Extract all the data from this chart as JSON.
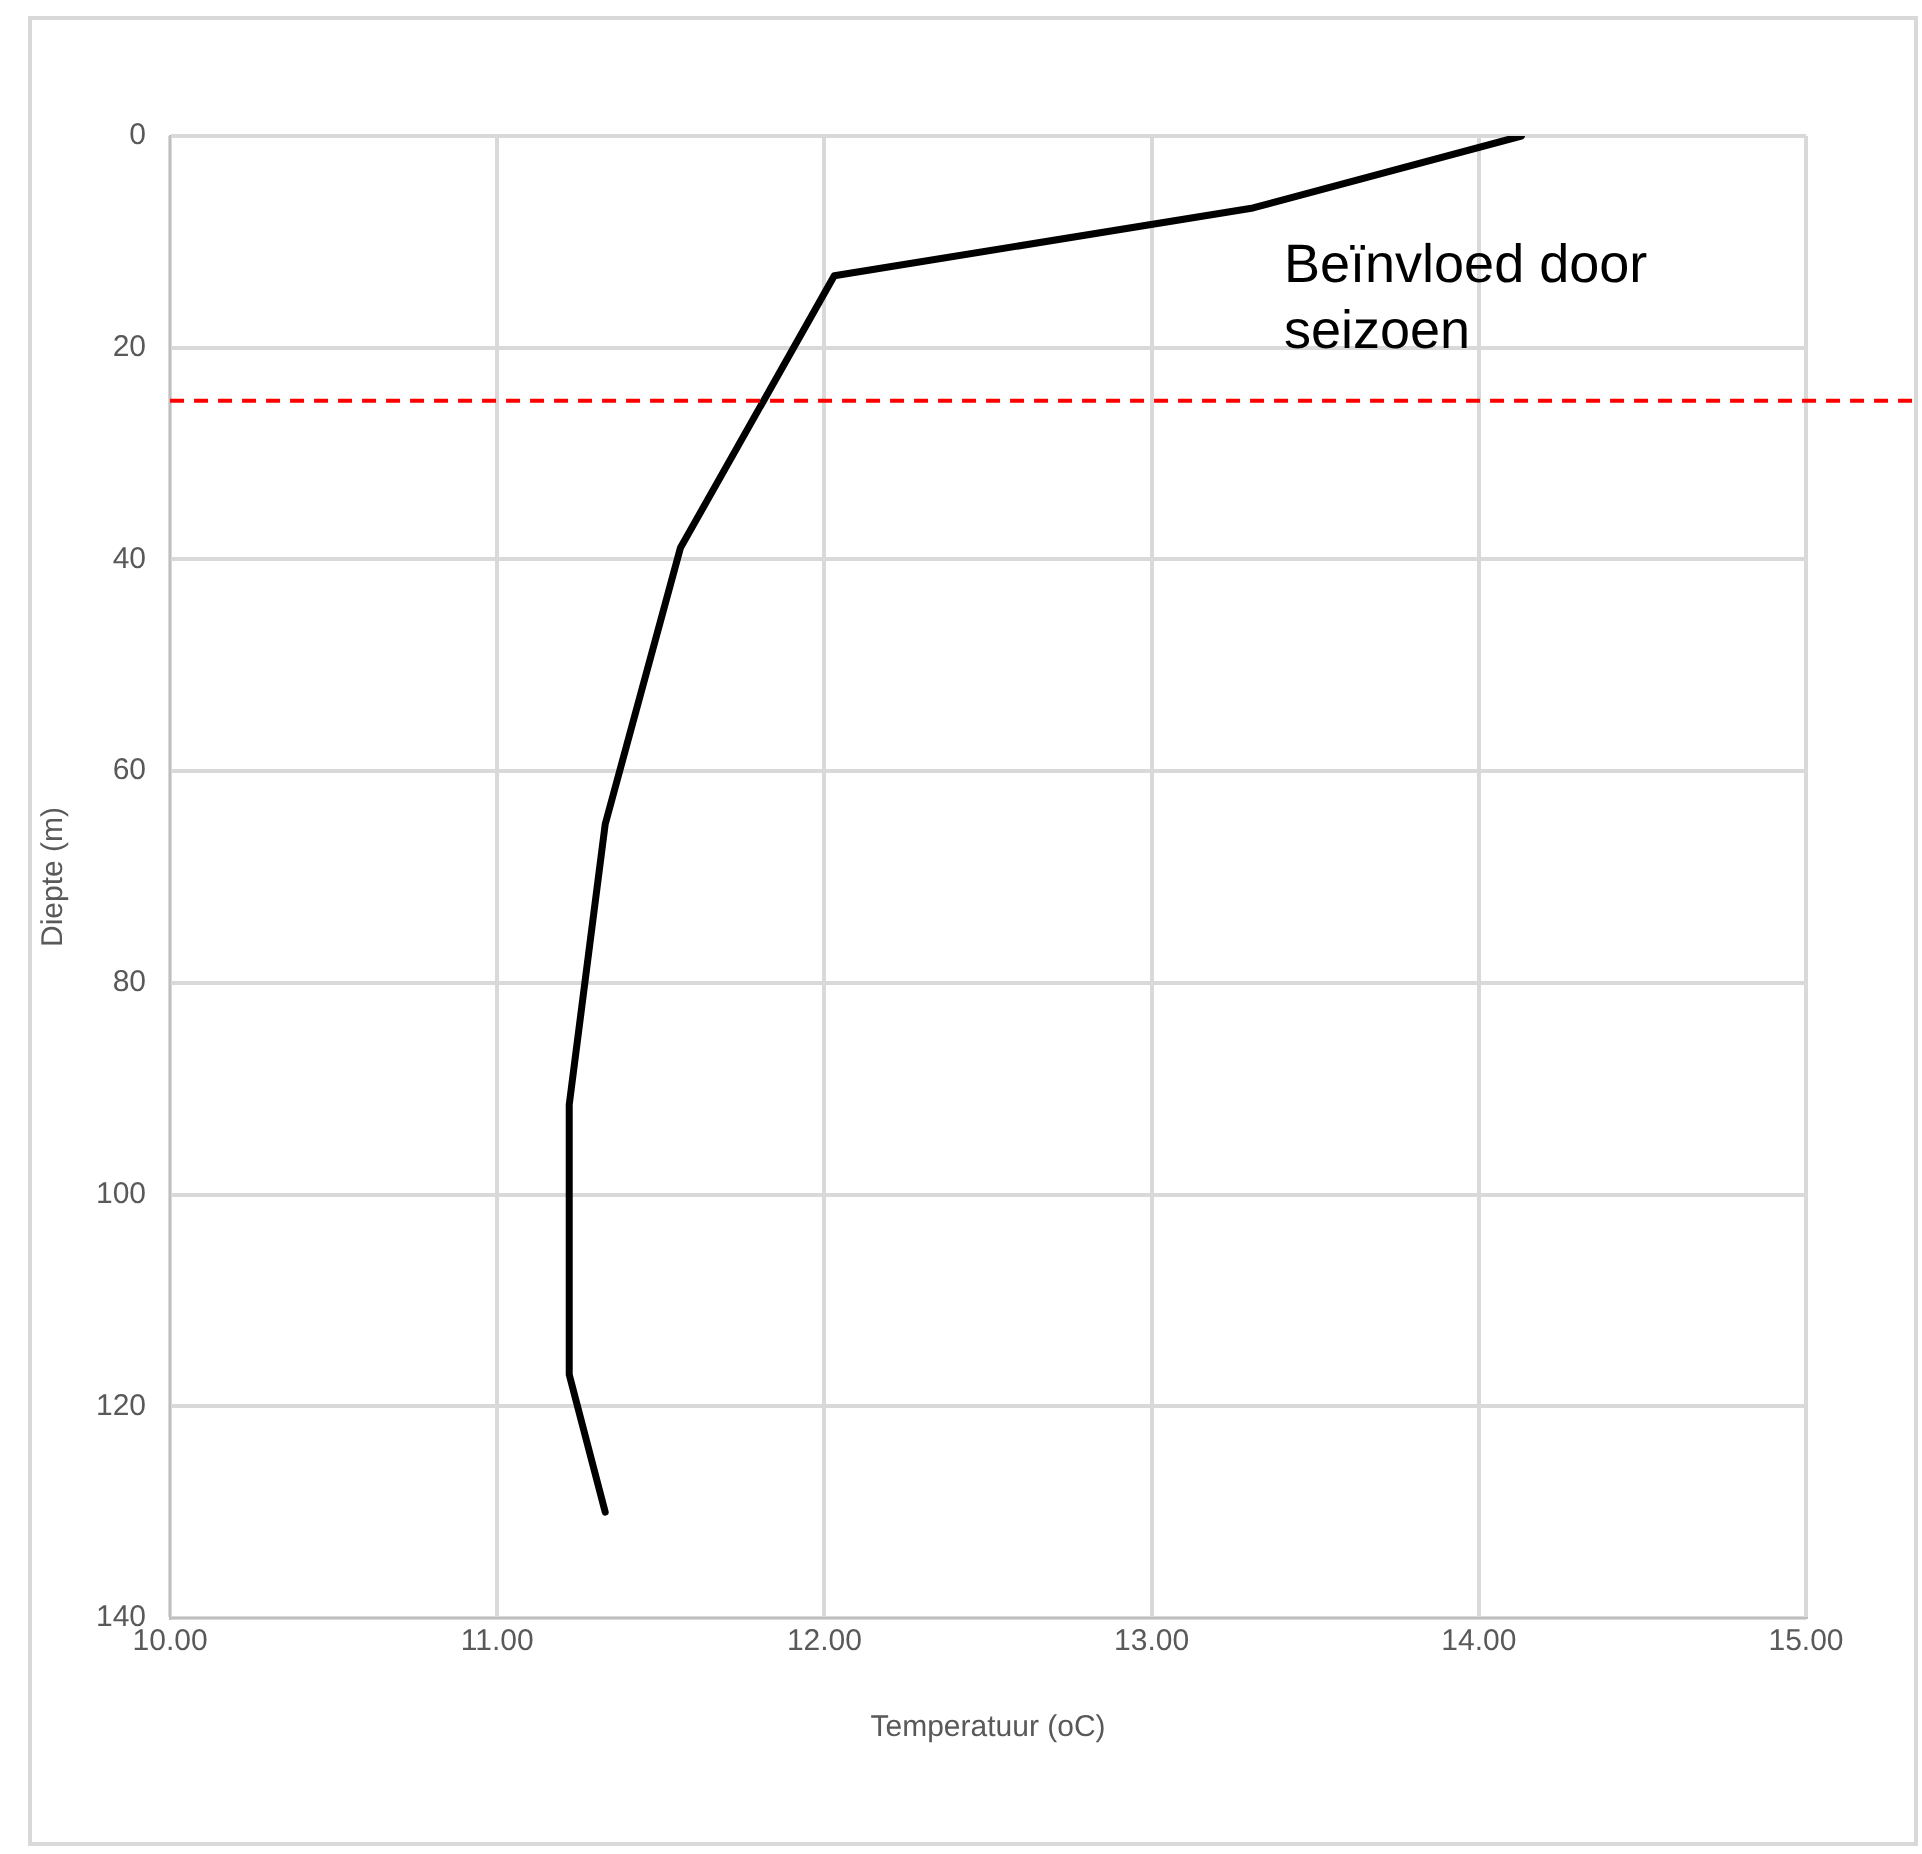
{
  "chart_data": {
    "type": "line",
    "xlabel": "Temperatuur (oC)",
    "ylabel": "Diepte (m)",
    "x": [
      14.13,
      13.31,
      12.03,
      11.56,
      11.33,
      11.22,
      11.22,
      11.33
    ],
    "series": [
      {
        "color": "#000000",
        "values": [
          0,
          6.8,
          13.2,
          38.9,
          65,
          91.5,
          117,
          130
        ]
      }
    ],
    "xlim": [
      10,
      15
    ],
    "xticks": [
      {
        "value": 10,
        "label": "10.00"
      },
      {
        "value": 11,
        "label": "11.00"
      },
      {
        "value": 12,
        "label": "12.00"
      },
      {
        "value": 13,
        "label": "13.00"
      },
      {
        "value": 14,
        "label": "14.00"
      },
      {
        "value": 15,
        "label": "15.00"
      }
    ],
    "ylim": [
      140,
      0
    ],
    "yticks": [
      0,
      20,
      40,
      60,
      80,
      100,
      120,
      140
    ],
    "grid": true,
    "legend": false,
    "marker": "none",
    "line_style": "solid",
    "ref_lines": [
      {
        "axis": "y",
        "value": 25,
        "color": "#ff0000",
        "line_style": "dashed"
      }
    ],
    "annotations": [
      "Beïnvloed door seizoen"
    ]
  }
}
